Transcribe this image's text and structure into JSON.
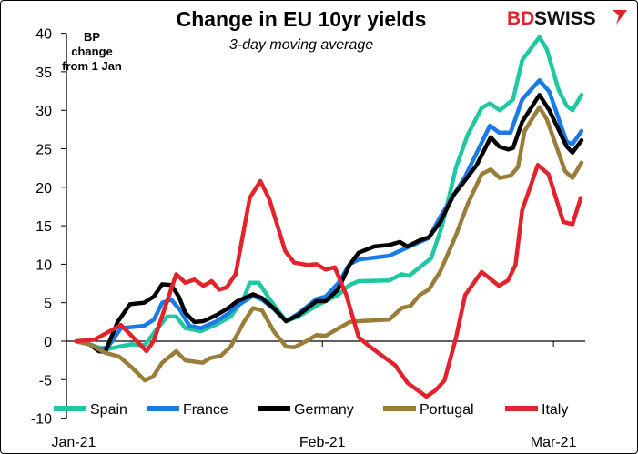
{
  "logo": {
    "text_a": "BD",
    "text_b": "SWISS",
    "color_a": "#e3232c",
    "color_b": "#111111"
  },
  "chart_data": {
    "type": "line",
    "title": "Change in EU 10yr yields",
    "subtitle": "3-day moving average",
    "ylabel": "BP change from 1 Jan",
    "ylabel_lines": [
      "BP",
      "change",
      "from 1 Jan"
    ],
    "xlabel": "",
    "x_unit": "days since 1 Jan 2021",
    "xlim": [
      0,
      63
    ],
    "ylim": [
      -10,
      40
    ],
    "yticks": [
      40,
      35,
      30,
      25,
      20,
      15,
      10,
      5,
      0,
      -5,
      -10
    ],
    "xticks": [
      {
        "label": "Jan-21",
        "x": 0
      },
      {
        "label": "Feb-21",
        "x": 31
      },
      {
        "label": "Mar-21",
        "x": 59
      }
    ],
    "grid": false,
    "legend_position": "bottom",
    "series": [
      {
        "name": "Spain",
        "color": "#1fc8a0",
        "points": [
          [
            1.2,
            0
          ],
          [
            2.8,
            -0.4
          ],
          [
            4.7,
            -1.1
          ],
          [
            6.4,
            -0.7
          ],
          [
            7.9,
            -0.4
          ],
          [
            9.5,
            -0.5
          ],
          [
            10.8,
            1.4
          ],
          [
            12.2,
            3.2
          ],
          [
            13.3,
            3.2
          ],
          [
            14.4,
            1.7
          ],
          [
            16.3,
            1.3
          ],
          [
            18.2,
            2.2
          ],
          [
            19.9,
            3.2
          ],
          [
            21.5,
            5.6
          ],
          [
            22.2,
            7.6
          ],
          [
            23.3,
            7.6
          ],
          [
            24.8,
            5.2
          ],
          [
            26.6,
            2.6
          ],
          [
            28.1,
            3.2
          ],
          [
            30.6,
            4.8
          ],
          [
            32.9,
            6.0
          ],
          [
            34.3,
            7.3
          ],
          [
            35.4,
            7.8
          ],
          [
            39.1,
            7.9
          ],
          [
            40.6,
            8.7
          ],
          [
            41.5,
            8.5
          ],
          [
            42.8,
            9.6
          ],
          [
            44.2,
            10.8
          ],
          [
            45.5,
            15.0
          ],
          [
            47.2,
            22.6
          ],
          [
            48.6,
            26.8
          ],
          [
            50.3,
            30.3
          ],
          [
            51.3,
            30.9
          ],
          [
            52.5,
            30.0
          ],
          [
            54.1,
            31.4
          ],
          [
            55.2,
            36.5
          ],
          [
            57.3,
            39.5
          ],
          [
            58.2,
            37.9
          ],
          [
            59.6,
            32.7
          ],
          [
            60.6,
            30.6
          ],
          [
            61.3,
            30.0
          ],
          [
            62.4,
            32.0
          ]
        ]
      },
      {
        "name": "France",
        "color": "#1a7ae8",
        "points": [
          [
            1.2,
            0
          ],
          [
            2.8,
            -0.4
          ],
          [
            3.9,
            -1.0
          ],
          [
            5.0,
            -0.8
          ],
          [
            6.6,
            1.7
          ],
          [
            9.4,
            2.0
          ],
          [
            10.6,
            2.8
          ],
          [
            11.6,
            5.0
          ],
          [
            12.7,
            5.4
          ],
          [
            13.8,
            4.0
          ],
          [
            14.9,
            2.0
          ],
          [
            16.3,
            1.7
          ],
          [
            18.2,
            2.6
          ],
          [
            19.6,
            3.6
          ],
          [
            20.7,
            4.6
          ],
          [
            22.6,
            5.9
          ],
          [
            23.7,
            5.4
          ],
          [
            25.1,
            4.2
          ],
          [
            26.6,
            2.6
          ],
          [
            28.1,
            3.6
          ],
          [
            30.3,
            5.5
          ],
          [
            31.4,
            5.8
          ],
          [
            32.9,
            7.5
          ],
          [
            34.3,
            10.0
          ],
          [
            35.4,
            10.6
          ],
          [
            39.1,
            11.1
          ],
          [
            42.8,
            12.9
          ],
          [
            43.9,
            13.4
          ],
          [
            45.3,
            16.2
          ],
          [
            48.3,
            21.4
          ],
          [
            51.3,
            28.0
          ],
          [
            52.4,
            27.1
          ],
          [
            53.8,
            27.1
          ],
          [
            55.2,
            31.4
          ],
          [
            57.3,
            33.9
          ],
          [
            58.5,
            32.4
          ],
          [
            60.6,
            25.9
          ],
          [
            61.3,
            25.6
          ],
          [
            62.4,
            27.3
          ]
        ]
      },
      {
        "name": "Germany",
        "color": "#000000",
        "points": [
          [
            1.2,
            0
          ],
          [
            2.8,
            -0.4
          ],
          [
            3.9,
            -1.3
          ],
          [
            4.7,
            -1.4
          ],
          [
            6.2,
            2.5
          ],
          [
            7.7,
            4.8
          ],
          [
            9.4,
            5.0
          ],
          [
            10.6,
            5.8
          ],
          [
            11.6,
            7.4
          ],
          [
            12.7,
            7.3
          ],
          [
            13.6,
            5.8
          ],
          [
            14.4,
            3.7
          ],
          [
            15.5,
            2.5
          ],
          [
            16.6,
            2.6
          ],
          [
            18.2,
            3.4
          ],
          [
            19.6,
            4.3
          ],
          [
            20.7,
            5.2
          ],
          [
            22.6,
            6.1
          ],
          [
            23.7,
            5.6
          ],
          [
            25.1,
            4.3
          ],
          [
            26.6,
            2.6
          ],
          [
            28.1,
            3.4
          ],
          [
            30.3,
            5.2
          ],
          [
            31.4,
            5.2
          ],
          [
            32.9,
            6.7
          ],
          [
            34.3,
            9.9
          ],
          [
            35.4,
            11.5
          ],
          [
            37.3,
            12.3
          ],
          [
            39.1,
            12.5
          ],
          [
            40.4,
            12.9
          ],
          [
            41.3,
            12.3
          ],
          [
            42.8,
            13.1
          ],
          [
            43.9,
            13.5
          ],
          [
            45.3,
            15.5
          ],
          [
            46.9,
            19.0
          ],
          [
            48.3,
            20.9
          ],
          [
            49.7,
            22.9
          ],
          [
            51.4,
            26.5
          ],
          [
            52.4,
            25.3
          ],
          [
            53.5,
            24.9
          ],
          [
            54.1,
            25.1
          ],
          [
            55.2,
            28.5
          ],
          [
            57.3,
            32.0
          ],
          [
            58.5,
            30.0
          ],
          [
            60.6,
            25.3
          ],
          [
            61.3,
            24.5
          ],
          [
            62.4,
            26.1
          ]
        ]
      },
      {
        "name": "Portugal",
        "color": "#9a7d3a",
        "points": [
          [
            1.2,
            0
          ],
          [
            2.8,
            -0.4
          ],
          [
            4.7,
            -1.5
          ],
          [
            6.4,
            -2.0
          ],
          [
            7.9,
            -3.4
          ],
          [
            9.5,
            -5.1
          ],
          [
            10.5,
            -4.6
          ],
          [
            11.6,
            -2.8
          ],
          [
            13.3,
            -1.3
          ],
          [
            14.4,
            -2.5
          ],
          [
            16.5,
            -2.8
          ],
          [
            17.4,
            -2.2
          ],
          [
            18.7,
            -1.9
          ],
          [
            19.9,
            -0.7
          ],
          [
            21.5,
            2.5
          ],
          [
            22.6,
            4.3
          ],
          [
            23.7,
            4.0
          ],
          [
            25.1,
            1.3
          ],
          [
            26.6,
            -0.7
          ],
          [
            27.6,
            -0.8
          ],
          [
            29.2,
            0.1
          ],
          [
            30.3,
            0.8
          ],
          [
            31.4,
            0.7
          ],
          [
            34.3,
            2.5
          ],
          [
            35.4,
            2.6
          ],
          [
            39.1,
            2.8
          ],
          [
            40.6,
            4.3
          ],
          [
            41.7,
            4.6
          ],
          [
            42.8,
            6.0
          ],
          [
            43.9,
            6.7
          ],
          [
            45.3,
            9.1
          ],
          [
            47.2,
            13.8
          ],
          [
            48.6,
            17.8
          ],
          [
            50.3,
            21.7
          ],
          [
            51.4,
            22.3
          ],
          [
            52.5,
            21.2
          ],
          [
            53.8,
            21.5
          ],
          [
            54.7,
            22.6
          ],
          [
            55.5,
            27.3
          ],
          [
            57.3,
            30.4
          ],
          [
            58.2,
            28.8
          ],
          [
            60.4,
            22.1
          ],
          [
            61.3,
            21.2
          ],
          [
            62.4,
            23.2
          ]
        ]
      },
      {
        "name": "Italy",
        "color": "#e3232c",
        "points": [
          [
            1.2,
            0
          ],
          [
            3.4,
            0.2
          ],
          [
            6.6,
            2.1
          ],
          [
            9.7,
            -1.3
          ],
          [
            10.6,
            0.1
          ],
          [
            13.3,
            8.7
          ],
          [
            14.4,
            7.6
          ],
          [
            15.5,
            8.0
          ],
          [
            16.6,
            7.2
          ],
          [
            17.6,
            7.8
          ],
          [
            18.5,
            6.7
          ],
          [
            19.4,
            7.0
          ],
          [
            20.5,
            8.7
          ],
          [
            22.2,
            18.6
          ],
          [
            23.5,
            20.8
          ],
          [
            24.6,
            18.4
          ],
          [
            26.5,
            11.7
          ],
          [
            27.6,
            10.2
          ],
          [
            29.2,
            9.9
          ],
          [
            30.3,
            10.0
          ],
          [
            31.4,
            9.3
          ],
          [
            32.5,
            9.6
          ],
          [
            33.9,
            6.0
          ],
          [
            35.4,
            0.5
          ],
          [
            36.5,
            -0.5
          ],
          [
            38.0,
            -1.7
          ],
          [
            39.8,
            -3.1
          ],
          [
            41.3,
            -5.4
          ],
          [
            43.6,
            -7.2
          ],
          [
            44.7,
            -6.4
          ],
          [
            45.8,
            -5.1
          ],
          [
            47.2,
            0.5
          ],
          [
            48.3,
            6.0
          ],
          [
            50.3,
            9.0
          ],
          [
            52.4,
            7.2
          ],
          [
            53.5,
            7.9
          ],
          [
            54.4,
            9.9
          ],
          [
            55.2,
            17.0
          ],
          [
            57.1,
            22.9
          ],
          [
            58.4,
            21.7
          ],
          [
            60.2,
            15.5
          ],
          [
            61.3,
            15.2
          ],
          [
            62.3,
            18.6
          ]
        ]
      }
    ]
  }
}
